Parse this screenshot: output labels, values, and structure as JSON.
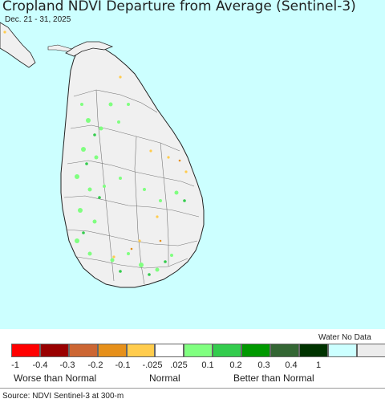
{
  "title": "Cropland NDVI Departure from Average (Sentinel-3)",
  "date_range": "Dec. 21 - 31, 2025",
  "legend": {
    "no_data_label": "Water No Data",
    "colors": [
      "#ff0000",
      "#990000",
      "#cc6633",
      "#e6901a",
      "#ffcc4d",
      "#ffffff",
      "#80ff80",
      "#33cc4d",
      "#009900",
      "#336633",
      "#003300",
      "#ccffff",
      "#ececec"
    ],
    "tick_labels": [
      "-1",
      "-0.4",
      "-0.3",
      "-0.2",
      "-0.1",
      "-.025",
      ".025",
      "0.1",
      "0.2",
      "0.3",
      "0.4",
      "1"
    ],
    "categories": [
      "Worse than Normal",
      "Normal",
      "Better than Normal"
    ]
  },
  "source": "Source: NDVI Sentinel-3 at 300-m",
  "colors": {
    "water": "#ccffff",
    "land": "#f0f0f0",
    "border": "#555555"
  }
}
